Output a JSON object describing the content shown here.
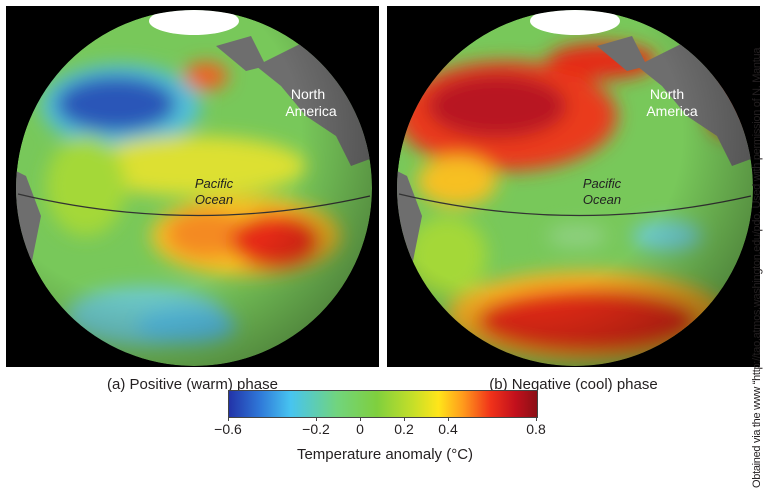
{
  "panels": [
    {
      "caption": "(a) Positive (warm) phase",
      "ocean_label_1": "Pacific",
      "ocean_label_2": "Ocean",
      "continent_label_1": "North",
      "continent_label_2": "America"
    },
    {
      "caption": "(b) Negative (cool) phase",
      "ocean_label_1": "Pacific",
      "ocean_label_2": "Ocean",
      "continent_label_1": "North",
      "continent_label_2": "America"
    }
  ],
  "legend": {
    "title": "Temperature anomaly (°C)",
    "ticks": [
      "−0.6",
      "−0.2",
      "0",
      "0.2",
      "0.4",
      "0.8"
    ],
    "tick_values": [
      -0.6,
      -0.2,
      0,
      0.2,
      0.4,
      0.8
    ],
    "range": [
      -0.6,
      0.8
    ],
    "colors": [
      "#2233a8",
      "#47c4f0",
      "#7fcf3e",
      "#ffe51a",
      "#f0321a",
      "#8b0f16"
    ]
  },
  "credit": "Obtained via the www “http://tao.atmos.washington.edu/pdo. Used with permission of N. Mantua"
}
